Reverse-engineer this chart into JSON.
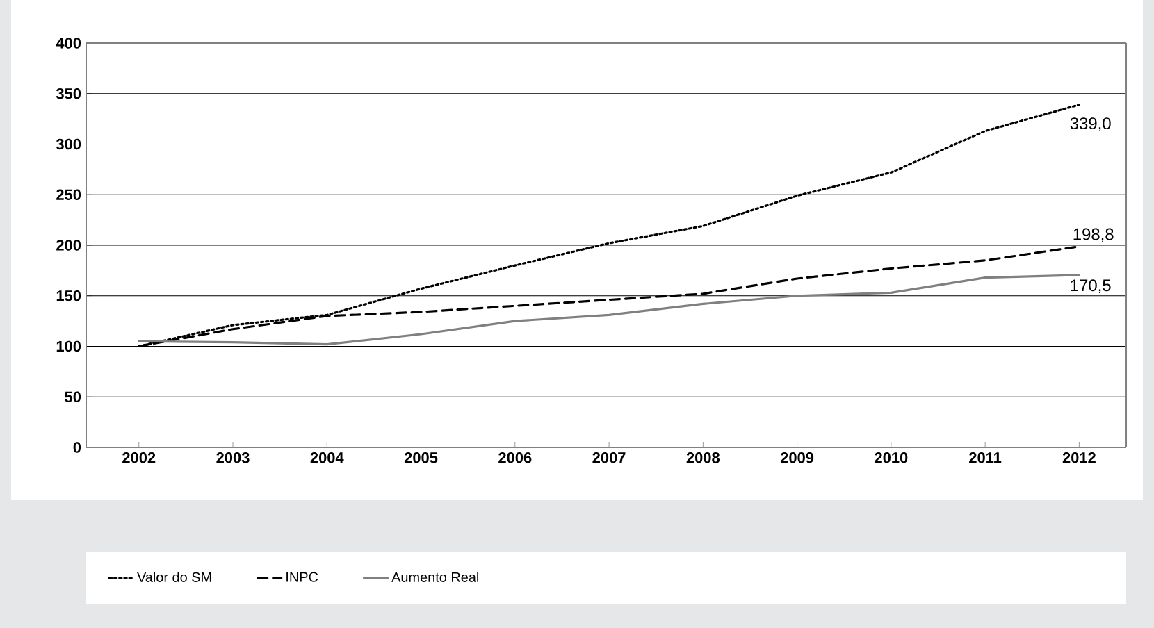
{
  "chart_data": {
    "type": "line",
    "categories": [
      "2002",
      "2003",
      "2004",
      "2005",
      "2006",
      "2007",
      "2008",
      "2009",
      "2010",
      "2011",
      "2012"
    ],
    "series": [
      {
        "name": "Valor do SM",
        "color": "#000000",
        "line_style": "dotted",
        "values": [
          100,
          121,
          131,
          157,
          180,
          202,
          219,
          249,
          272,
          313,
          339.0
        ],
        "value_labels": [
          null,
          null,
          null,
          null,
          null,
          null,
          null,
          null,
          null,
          null,
          "339,0"
        ]
      },
      {
        "name": "INPC",
        "color": "#000000",
        "line_style": "dashed",
        "values": [
          100,
          117,
          130,
          134,
          140,
          146,
          152,
          167,
          177,
          185,
          198.8
        ],
        "value_labels": [
          null,
          null,
          null,
          null,
          null,
          null,
          null,
          null,
          null,
          null,
          "198,8"
        ]
      },
      {
        "name": "Aumento Real",
        "color": "#808080",
        "line_style": "solid",
        "values": [
          105,
          104,
          102,
          112,
          125,
          131,
          142,
          150,
          153,
          168,
          170.5
        ],
        "value_labels": [
          null,
          null,
          null,
          null,
          null,
          null,
          null,
          null,
          null,
          null,
          "170,5"
        ]
      }
    ],
    "ylim": [
      0,
      400
    ],
    "yticks": [
      0,
      50,
      100,
      150,
      200,
      250,
      300,
      350,
      400
    ],
    "grid": "y",
    "legend": "bottom"
  }
}
